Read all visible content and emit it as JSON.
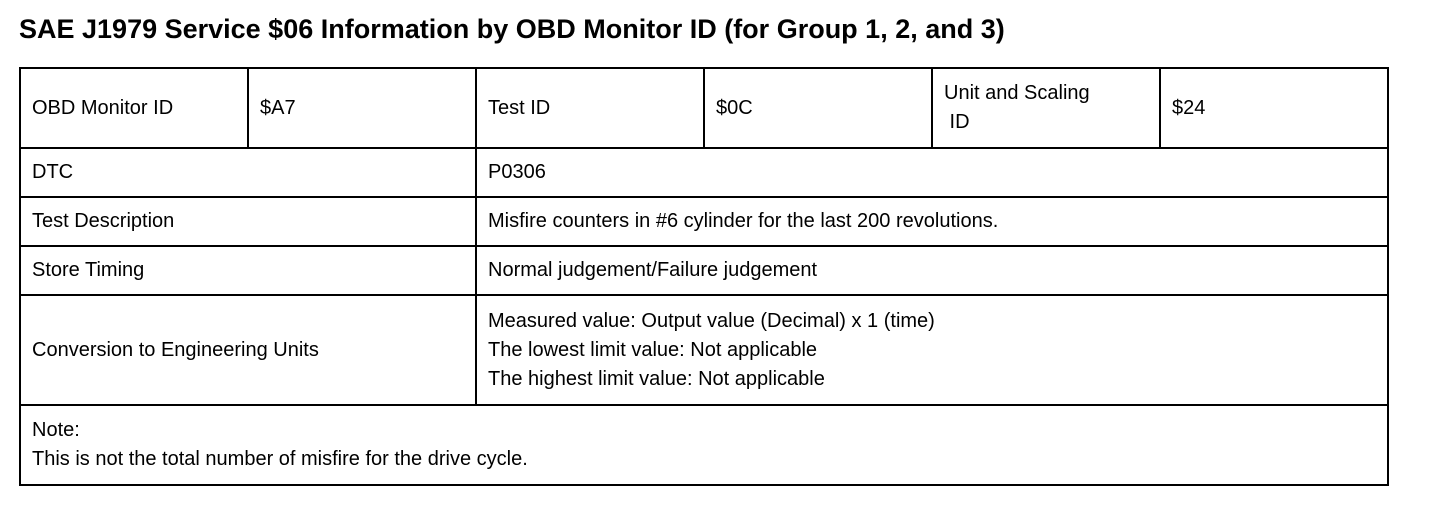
{
  "title": "SAE J1979 Service $06 Information by OBD Monitor ID (for Group 1, 2, and 3)",
  "header": {
    "monitor_id_label": "OBD Monitor ID",
    "monitor_id": "$A7",
    "test_id_label": "Test ID",
    "test_id": "$0C",
    "unit_label_1": "Unit and Scaling",
    "unit_label_2": " ID",
    "unit_id": "$24"
  },
  "rows": [
    {
      "label": "DTC",
      "value": "P0306"
    },
    {
      "label": "Test Description",
      "value": "Misfire counters in #6 cylinder for the last 200 revolutions."
    },
    {
      "label": "Store Timing",
      "value": "Normal judgement/Failure judgement"
    },
    {
      "label": "Conversion to Engineering Units",
      "lines": [
        "Measured value: Output value (Decimal) x 1 (time)",
        "The lowest limit value: Not applicable",
        "The highest limit value: Not applicable"
      ]
    }
  ],
  "note": {
    "label": "Note:",
    "text": "This is not the total number of misfire for the drive cycle."
  }
}
